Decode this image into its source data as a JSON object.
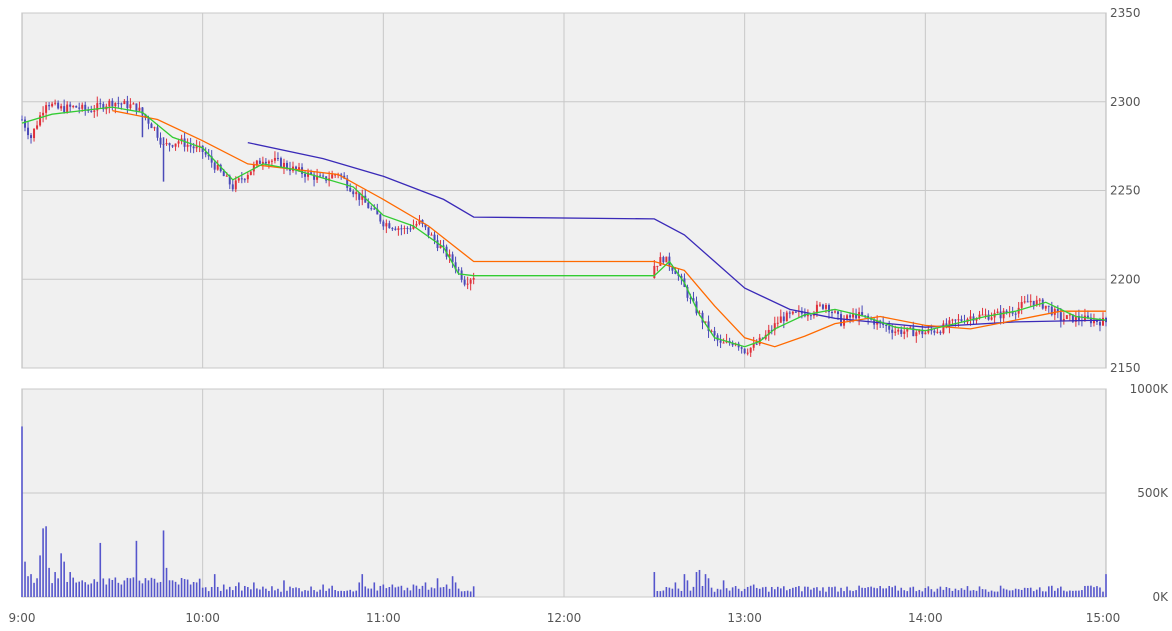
{
  "colors": {
    "panel_bg": "#f0f0f0",
    "grid": "#c8c8c8",
    "frame": "#b4b4b4",
    "candle_up": "#e0303a",
    "candle_down": "#4a4ab8",
    "ma_short": "#33cc33",
    "ma_mid": "#ff6a00",
    "ma_long": "#3a2ab8",
    "volume": "#5555cc"
  },
  "chart_data": [
    {
      "type": "candlestick",
      "title": "",
      "x_ticks": [
        "9:00",
        "10:00",
        "11:00",
        "12:00",
        "13:00",
        "14:00",
        "15:00"
      ],
      "y_ticks": [
        "2150",
        "2200",
        "2250",
        "2300",
        "2350"
      ],
      "ylim": [
        2150,
        2350
      ],
      "xlim": [
        "9:00",
        "15:00"
      ],
      "grid": true,
      "lunch_break": [
        "11:30",
        "12:30"
      ],
      "price_path": [
        [
          "9:00",
          2290
        ],
        [
          "9:03",
          2280
        ],
        [
          "9:08",
          2300
        ],
        [
          "9:12",
          2296
        ],
        [
          "9:18",
          2297
        ],
        [
          "9:22",
          2295
        ],
        [
          "9:30",
          2300
        ],
        [
          "9:38",
          2297
        ],
        [
          "9:44",
          2285
        ],
        [
          "9:47",
          2275
        ],
        [
          "9:52",
          2278
        ],
        [
          "10:00",
          2272
        ],
        [
          "10:05",
          2262
        ],
        [
          "10:10",
          2252
        ],
        [
          "10:15",
          2260
        ],
        [
          "10:20",
          2268
        ],
        [
          "10:25",
          2266
        ],
        [
          "10:30",
          2262
        ],
        [
          "10:40",
          2256
        ],
        [
          "10:45",
          2260
        ],
        [
          "10:50",
          2250
        ],
        [
          "11:00",
          2232
        ],
        [
          "11:07",
          2228
        ],
        [
          "11:12",
          2232
        ],
        [
          "11:18",
          2220
        ],
        [
          "11:23",
          2210
        ],
        [
          "11:27",
          2199
        ],
        [
          "11:30",
          2202
        ],
        [
          "12:30",
          2208
        ],
        [
          "12:33",
          2212
        ],
        [
          "12:37",
          2205
        ],
        [
          "12:42",
          2188
        ],
        [
          "12:47",
          2174
        ],
        [
          "12:52",
          2163
        ],
        [
          "12:57",
          2165
        ],
        [
          "13:00",
          2160
        ],
        [
          "13:03",
          2162
        ],
        [
          "13:07",
          2168
        ],
        [
          "13:12",
          2178
        ],
        [
          "13:17",
          2180
        ],
        [
          "13:22",
          2182
        ],
        [
          "13:27",
          2186
        ],
        [
          "13:32",
          2176
        ],
        [
          "13:37",
          2180
        ],
        [
          "13:45",
          2175
        ],
        [
          "13:50",
          2171
        ],
        [
          "14:00",
          2170
        ],
        [
          "14:05",
          2172
        ],
        [
          "14:10",
          2176
        ],
        [
          "14:15",
          2179
        ],
        [
          "14:25",
          2180
        ],
        [
          "14:30",
          2183
        ],
        [
          "14:35",
          2188
        ],
        [
          "14:40",
          2185
        ],
        [
          "14:45",
          2178
        ],
        [
          "14:50",
          2178
        ],
        [
          "15:00",
          2176
        ]
      ],
      "ma_short": [
        [
          "9:00",
          2288
        ],
        [
          "9:10",
          2293
        ],
        [
          "9:20",
          2295
        ],
        [
          "9:30",
          2297
        ],
        [
          "9:40",
          2294
        ],
        [
          "9:50",
          2280
        ],
        [
          "10:00",
          2274
        ],
        [
          "10:10",
          2256
        ],
        [
          "10:20",
          2265
        ],
        [
          "10:30",
          2262
        ],
        [
          "10:40",
          2257
        ],
        [
          "10:50",
          2252
        ],
        [
          "11:00",
          2236
        ],
        [
          "11:10",
          2230
        ],
        [
          "11:20",
          2218
        ],
        [
          "11:25",
          2203
        ],
        [
          "11:30",
          2202
        ],
        [
          "12:30",
          2202
        ],
        [
          "12:35",
          2210
        ],
        [
          "12:40",
          2198
        ],
        [
          "12:45",
          2180
        ],
        [
          "12:50",
          2167
        ],
        [
          "13:00",
          2162
        ],
        [
          "13:05",
          2165
        ],
        [
          "13:10",
          2172
        ],
        [
          "13:20",
          2180
        ],
        [
          "13:30",
          2183
        ],
        [
          "13:40",
          2179
        ],
        [
          "13:50",
          2173
        ],
        [
          "14:00",
          2171
        ],
        [
          "14:10",
          2175
        ],
        [
          "14:20",
          2179
        ],
        [
          "14:30",
          2182
        ],
        [
          "14:40",
          2187
        ],
        [
          "14:50",
          2179
        ],
        [
          "15:00",
          2177
        ]
      ],
      "ma_mid": [
        [
          "9:30",
          2295
        ],
        [
          "9:45",
          2290
        ],
        [
          "10:00",
          2278
        ],
        [
          "10:15",
          2265
        ],
        [
          "10:30",
          2262
        ],
        [
          "10:45",
          2259
        ],
        [
          "11:00",
          2245
        ],
        [
          "11:15",
          2230
        ],
        [
          "11:30",
          2210
        ],
        [
          "12:30",
          2210
        ],
        [
          "12:40",
          2205
        ],
        [
          "12:50",
          2185
        ],
        [
          "13:00",
          2167
        ],
        [
          "13:10",
          2162
        ],
        [
          "13:20",
          2168
        ],
        [
          "13:30",
          2175
        ],
        [
          "13:45",
          2179
        ],
        [
          "14:00",
          2174
        ],
        [
          "14:15",
          2172
        ],
        [
          "14:30",
          2177
        ],
        [
          "14:45",
          2182
        ],
        [
          "15:00",
          2182
        ]
      ],
      "ma_long": [
        [
          "10:15",
          2277
        ],
        [
          "10:40",
          2268
        ],
        [
          "11:00",
          2258
        ],
        [
          "11:20",
          2245
        ],
        [
          "11:30",
          2235
        ],
        [
          "12:30",
          2234
        ],
        [
          "12:40",
          2225
        ],
        [
          "12:50",
          2210
        ],
        [
          "13:00",
          2195
        ],
        [
          "13:15",
          2183
        ],
        [
          "13:30",
          2178
        ],
        [
          "14:00",
          2173
        ],
        [
          "14:30",
          2176
        ],
        [
          "15:00",
          2177
        ]
      ]
    },
    {
      "type": "bar",
      "title": "",
      "series_name": "volume",
      "y_ticks": [
        "0K",
        "500K",
        "1000K"
      ],
      "ylim": [
        0,
        1000
      ],
      "x_ticks": [
        "9:00",
        "10:00",
        "11:00",
        "12:00",
        "13:00",
        "14:00",
        "15:00"
      ],
      "spikes_k": [
        [
          "9:00",
          820
        ],
        [
          "9:01",
          170
        ],
        [
          "9:02",
          100
        ],
        [
          "9:03",
          110
        ],
        [
          "9:05",
          90
        ],
        [
          "9:06",
          200
        ],
        [
          "9:07",
          330
        ],
        [
          "9:08",
          340
        ],
        [
          "9:09",
          140
        ],
        [
          "9:11",
          120
        ],
        [
          "9:13",
          210
        ],
        [
          "9:14",
          170
        ],
        [
          "9:16",
          120
        ],
        [
          "9:20",
          80
        ],
        [
          "9:22",
          60
        ],
        [
          "9:26",
          260
        ],
        [
          "9:28",
          60
        ],
        [
          "9:33",
          60
        ],
        [
          "9:36",
          90
        ],
        [
          "9:38",
          270
        ],
        [
          "9:42",
          80
        ],
        [
          "9:47",
          320
        ],
        [
          "9:48",
          140
        ],
        [
          "9:50",
          80
        ],
        [
          "9:52",
          60
        ],
        [
          "9:56",
          60
        ],
        [
          "9:58",
          70
        ],
        [
          "10:04",
          110
        ],
        [
          "10:07",
          60
        ],
        [
          "10:12",
          70
        ],
        [
          "10:17",
          70
        ],
        [
          "10:27",
          80
        ],
        [
          "10:40",
          60
        ],
        [
          "10:52",
          70
        ],
        [
          "10:53",
          110
        ],
        [
          "10:57",
          70
        ],
        [
          "11:00",
          60
        ],
        [
          "11:03",
          60
        ],
        [
          "11:10",
          60
        ],
        [
          "11:14",
          70
        ],
        [
          "11:18",
          90
        ],
        [
          "11:21",
          60
        ],
        [
          "11:23",
          100
        ],
        [
          "11:24",
          70
        ],
        [
          "12:30",
          120
        ],
        [
          "12:37",
          70
        ],
        [
          "12:40",
          110
        ],
        [
          "12:41",
          80
        ],
        [
          "12:44",
          120
        ],
        [
          "12:45",
          130
        ],
        [
          "12:47",
          110
        ],
        [
          "12:48",
          90
        ],
        [
          "12:53",
          80
        ],
        [
          "13:03",
          60
        ],
        [
          "13:20",
          50
        ],
        [
          "13:30",
          50
        ],
        [
          "13:34",
          50
        ],
        [
          "13:42",
          50
        ],
        [
          "14:04",
          40
        ],
        [
          "14:10",
          40
        ],
        [
          "14:30",
          40
        ],
        [
          "14:45",
          50
        ],
        [
          "15:00",
          110
        ]
      ],
      "base_level_k": 25
    }
  ]
}
